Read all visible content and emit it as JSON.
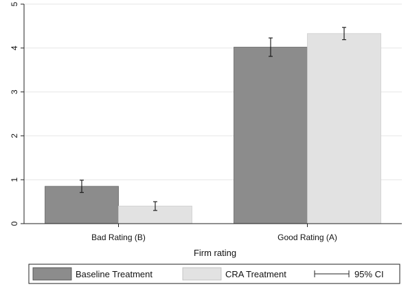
{
  "chart_data": {
    "type": "bar",
    "title": "",
    "xlabel": "Firm rating",
    "ylabel": "",
    "categories": [
      "Bad Rating (B)",
      "Good Rating (A)"
    ],
    "ylim": [
      0,
      5
    ],
    "yticks": [
      0,
      1,
      2,
      3,
      4,
      5
    ],
    "grid": true,
    "series": [
      {
        "name": "Baseline Treatment",
        "color": "#8c8c8c",
        "values": [
          0.85,
          4.02
        ],
        "ci_low": [
          0.71,
          3.81
        ],
        "ci_high": [
          0.99,
          4.23
        ]
      },
      {
        "name": "CRA Treatment",
        "color": "#e2e2e2",
        "values": [
          0.4,
          4.33
        ],
        "ci_low": [
          0.3,
          4.19
        ],
        "ci_high": [
          0.5,
          4.47
        ]
      }
    ],
    "legend": {
      "position": "bottom",
      "ci_label": "95% CI"
    }
  }
}
